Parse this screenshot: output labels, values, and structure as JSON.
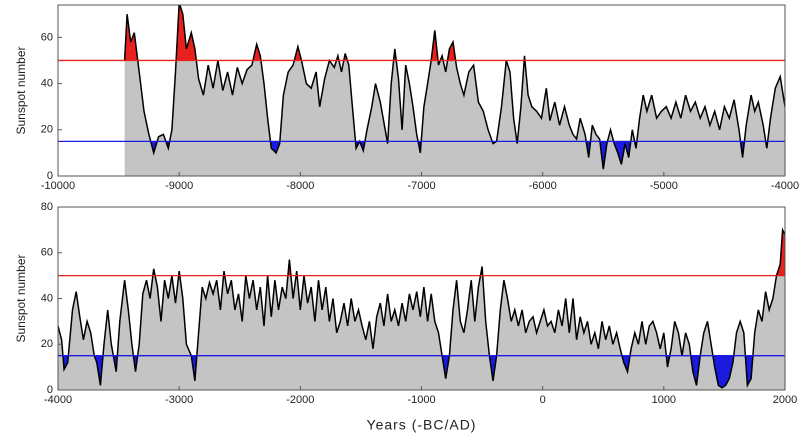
{
  "chart_data": [
    {
      "type": "area",
      "ylabel": "Sunspot number",
      "color": "#c4c4c4",
      "line_color": "#000000",
      "xlim": [
        -10000,
        -4000
      ],
      "ylim": [
        0,
        74
      ],
      "xticks": [
        -10000,
        -9000,
        -8000,
        -7000,
        -6000,
        -5000,
        -4000
      ],
      "yticks": [
        0,
        20,
        40,
        60
      ],
      "reference_lines": [
        {
          "value": 50,
          "color": "#e8201e"
        },
        {
          "value": 15,
          "color": "#1a1ae0"
        }
      ],
      "x": [
        -9450,
        -9430,
        -9400,
        -9370,
        -9330,
        -9290,
        -9250,
        -9210,
        -9170,
        -9130,
        -9090,
        -9060,
        -9030,
        -9000,
        -8970,
        -8940,
        -8900,
        -8870,
        -8840,
        -8800,
        -8760,
        -8720,
        -8680,
        -8640,
        -8600,
        -8560,
        -8520,
        -8480,
        -8440,
        -8400,
        -8360,
        -8330,
        -8300,
        -8270,
        -8240,
        -8200,
        -8170,
        -8140,
        -8100,
        -8060,
        -8020,
        -7990,
        -7950,
        -7910,
        -7870,
        -7840,
        -7800,
        -7760,
        -7720,
        -7690,
        -7660,
        -7630,
        -7600,
        -7570,
        -7540,
        -7510,
        -7480,
        -7450,
        -7410,
        -7380,
        -7340,
        -7300,
        -7280,
        -7250,
        -7220,
        -7190,
        -7160,
        -7130,
        -7100,
        -7070,
        -7040,
        -7010,
        -6980,
        -6950,
        -6920,
        -6890,
        -6860,
        -6830,
        -6800,
        -6770,
        -6740,
        -6710,
        -6680,
        -6650,
        -6610,
        -6570,
        -6530,
        -6490,
        -6450,
        -6410,
        -6380,
        -6340,
        -6300,
        -6270,
        -6240,
        -6210,
        -6180,
        -6150,
        -6120,
        -6090,
        -6050,
        -6010,
        -5970,
        -5940,
        -5900,
        -5860,
        -5820,
        -5780,
        -5750,
        -5720,
        -5690,
        -5650,
        -5620,
        -5590,
        -5560,
        -5530,
        -5500,
        -5470,
        -5440,
        -5410,
        -5380,
        -5350,
        -5320,
        -5290,
        -5260,
        -5230,
        -5200,
        -5170,
        -5140,
        -5100,
        -5060,
        -5020,
        -4980,
        -4940,
        -4900,
        -4860,
        -4820,
        -4780,
        -4740,
        -4700,
        -4660,
        -4620,
        -4580,
        -4540,
        -4500,
        -4460,
        -4420,
        -4380,
        -4350,
        -4320,
        -4280,
        -4250,
        -4220,
        -4180,
        -4150,
        -4120,
        -4080,
        -4040,
        -4000
      ],
      "values": [
        50,
        70,
        58,
        62,
        45,
        28,
        18,
        10,
        17,
        18,
        12,
        20,
        45,
        75,
        70,
        55,
        62,
        55,
        42,
        35,
        48,
        38,
        50,
        37,
        45,
        35,
        47,
        40,
        46,
        48,
        57,
        52,
        40,
        25,
        12,
        10,
        14,
        35,
        45,
        48,
        56,
        50,
        40,
        38,
        45,
        30,
        42,
        50,
        47,
        52,
        45,
        53,
        48,
        30,
        12,
        15,
        11,
        20,
        30,
        40,
        32,
        20,
        14,
        40,
        55,
        42,
        20,
        48,
        40,
        30,
        18,
        10,
        30,
        40,
        50,
        63,
        48,
        52,
        45,
        55,
        58,
        47,
        40,
        35,
        45,
        48,
        32,
        28,
        20,
        14,
        15,
        30,
        50,
        45,
        25,
        14,
        30,
        52,
        35,
        30,
        28,
        25,
        38,
        24,
        32,
        22,
        30,
        22,
        18,
        16,
        25,
        18,
        8,
        22,
        18,
        16,
        3,
        14,
        20,
        14,
        10,
        5,
        14,
        8,
        20,
        12,
        25,
        35,
        28,
        35,
        25,
        28,
        30,
        25,
        32,
        25,
        35,
        28,
        32,
        25,
        30,
        22,
        28,
        20,
        30,
        25,
        33,
        20,
        8,
        22,
        35,
        28,
        32,
        22,
        12,
        25,
        38,
        43,
        30
      ]
    },
    {
      "type": "area",
      "ylabel": "Sunspot number",
      "xlabel": "Years (-BC/AD)",
      "color": "#c4c4c4",
      "line_color": "#000000",
      "xlim": [
        -4000,
        2000
      ],
      "ylim": [
        0,
        80
      ],
      "xticks": [
        -4000,
        -3000,
        -2000,
        -1000,
        0,
        1000,
        2000
      ],
      "yticks": [
        0,
        20,
        40,
        60,
        80
      ],
      "reference_lines": [
        {
          "value": 50,
          "color": "#e8201e"
        },
        {
          "value": 15,
          "color": "#1a1ae0"
        }
      ],
      "x": [
        -4000,
        -3970,
        -3950,
        -3920,
        -3880,
        -3850,
        -3820,
        -3790,
        -3760,
        -3730,
        -3700,
        -3680,
        -3650,
        -3620,
        -3590,
        -3560,
        -3520,
        -3490,
        -3450,
        -3420,
        -3390,
        -3360,
        -3330,
        -3300,
        -3270,
        -3240,
        -3210,
        -3180,
        -3150,
        -3120,
        -3090,
        -3060,
        -3030,
        -3000,
        -2970,
        -2940,
        -2900,
        -2870,
        -2840,
        -2810,
        -2780,
        -2750,
        -2720,
        -2690,
        -2660,
        -2630,
        -2600,
        -2570,
        -2540,
        -2510,
        -2480,
        -2450,
        -2420,
        -2390,
        -2360,
        -2330,
        -2300,
        -2270,
        -2240,
        -2210,
        -2180,
        -2150,
        -2120,
        -2090,
        -2060,
        -2030,
        -2000,
        -1970,
        -1940,
        -1910,
        -1880,
        -1850,
        -1820,
        -1790,
        -1760,
        -1730,
        -1700,
        -1670,
        -1640,
        -1610,
        -1580,
        -1550,
        -1520,
        -1490,
        -1460,
        -1430,
        -1400,
        -1370,
        -1340,
        -1310,
        -1280,
        -1250,
        -1220,
        -1190,
        -1160,
        -1130,
        -1100,
        -1070,
        -1040,
        -1010,
        -980,
        -950,
        -920,
        -890,
        -860,
        -830,
        -800,
        -770,
        -740,
        -710,
        -680,
        -650,
        -620,
        -590,
        -560,
        -530,
        -500,
        -470,
        -440,
        -410,
        -380,
        -350,
        -320,
        -290,
        -260,
        -230,
        -200,
        -170,
        -140,
        -110,
        -80,
        -50,
        -20,
        10,
        40,
        70,
        100,
        130,
        160,
        190,
        220,
        250,
        280,
        310,
        340,
        370,
        400,
        430,
        460,
        490,
        520,
        550,
        580,
        610,
        640,
        670,
        700,
        730,
        760,
        790,
        820,
        850,
        880,
        910,
        940,
        970,
        1000,
        1030,
        1060,
        1090,
        1120,
        1150,
        1180,
        1210,
        1240,
        1270,
        1300,
        1330,
        1360,
        1390,
        1420,
        1450,
        1480,
        1510,
        1540,
        1570,
        1600,
        1630,
        1660,
        1690,
        1720,
        1750,
        1780,
        1810,
        1840,
        1870,
        1900,
        1930,
        1960,
        1980,
        2000
      ],
      "values": [
        28,
        22,
        9,
        12,
        35,
        43,
        32,
        22,
        30,
        25,
        15,
        12,
        2,
        20,
        35,
        20,
        8,
        30,
        48,
        35,
        20,
        8,
        20,
        42,
        48,
        40,
        53,
        45,
        30,
        48,
        40,
        50,
        38,
        52,
        40,
        20,
        15,
        4,
        25,
        45,
        40,
        47,
        42,
        48,
        35,
        52,
        42,
        48,
        35,
        42,
        30,
        50,
        40,
        48,
        35,
        45,
        28,
        50,
        32,
        48,
        35,
        45,
        40,
        57,
        40,
        52,
        35,
        50,
        38,
        45,
        30,
        48,
        35,
        45,
        30,
        40,
        25,
        30,
        38,
        28,
        40,
        30,
        35,
        28,
        22,
        30,
        18,
        32,
        38,
        28,
        42,
        30,
        35,
        28,
        38,
        30,
        42,
        35,
        43,
        32,
        45,
        30,
        42,
        30,
        25,
        15,
        5,
        15,
        35,
        48,
        30,
        25,
        35,
        48,
        30,
        45,
        54,
        30,
        15,
        4,
        15,
        35,
        48,
        40,
        30,
        35,
        28,
        35,
        25,
        30,
        32,
        25,
        30,
        35,
        28,
        30,
        25,
        35,
        28,
        40,
        25,
        40,
        22,
        32,
        25,
        30,
        20,
        25,
        18,
        30,
        22,
        28,
        20,
        25,
        18,
        12,
        8,
        18,
        25,
        20,
        30,
        20,
        28,
        30,
        25,
        18,
        25,
        10,
        18,
        30,
        25,
        15,
        25,
        20,
        8,
        2,
        15,
        25,
        30,
        20,
        10,
        2,
        1,
        2,
        5,
        12,
        25,
        30,
        25,
        2,
        5,
        25,
        35,
        30,
        43,
        35,
        40,
        50,
        55,
        70,
        68
      ]
    }
  ]
}
